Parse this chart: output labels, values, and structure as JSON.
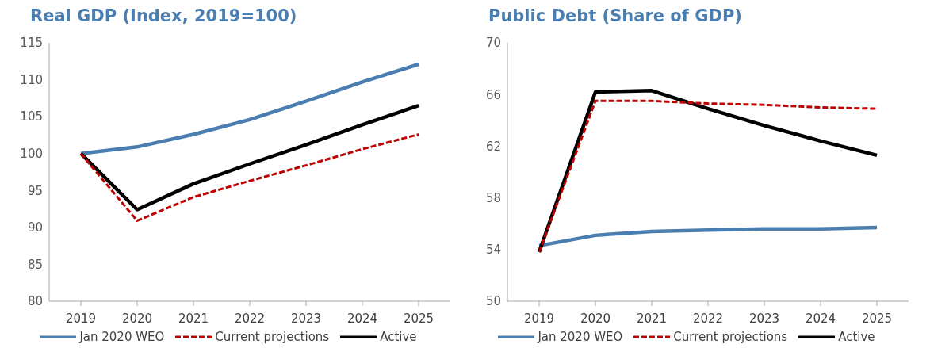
{
  "chart_data": [
    {
      "type": "line",
      "title": "Real GDP (Index, 2019=100)",
      "categories": [
        "2019",
        "2020",
        "2021",
        "2022",
        "2023",
        "2024",
        "2025"
      ],
      "ylim": [
        80,
        115
      ],
      "yticks": [
        80,
        85,
        90,
        95,
        100,
        105,
        110,
        115
      ],
      "grid": false,
      "legend": "bottom",
      "marker": "none",
      "series": [
        {
          "name": "Jan 2020 WEO",
          "color": "#4a7eb0",
          "line_style": "solid",
          "values": [
            100,
            100.9,
            102.6,
            104.6,
            107.1,
            109.7,
            112.1
          ]
        },
        {
          "name": "Current projections",
          "color": "#c00000",
          "line_style": "dashed",
          "values": [
            100,
            90.9,
            94.1,
            96.3,
            98.4,
            100.6,
            102.6
          ]
        },
        {
          "name": "Active",
          "color": "#000000",
          "line_style": "solid",
          "values": [
            100,
            92.4,
            95.9,
            98.6,
            101.2,
            103.9,
            106.5
          ]
        }
      ]
    },
    {
      "type": "line",
      "title": "Public Debt (Share of GDP)",
      "categories": [
        "2019",
        "2020",
        "2021",
        "2022",
        "2023",
        "2024",
        "2025"
      ],
      "ylim": [
        50,
        70
      ],
      "yticks": [
        50,
        54,
        58,
        62,
        66,
        70
      ],
      "grid": false,
      "legend": "bottom",
      "marker": "none",
      "series": [
        {
          "name": "Jan 2020 WEO",
          "color": "#4a7eb0",
          "line_style": "solid",
          "values": [
            54.3,
            55.1,
            55.4,
            55.5,
            55.6,
            55.6,
            55.7
          ]
        },
        {
          "name": "Current projections",
          "color": "#c00000",
          "line_style": "dashed",
          "values": [
            53.8,
            65.5,
            65.5,
            65.3,
            65.2,
            65.0,
            64.9
          ]
        },
        {
          "name": "Active",
          "color": "#000000",
          "line_style": "solid",
          "values": [
            53.8,
            66.2,
            66.3,
            64.9,
            63.6,
            62.4,
            61.3
          ]
        }
      ]
    }
  ]
}
